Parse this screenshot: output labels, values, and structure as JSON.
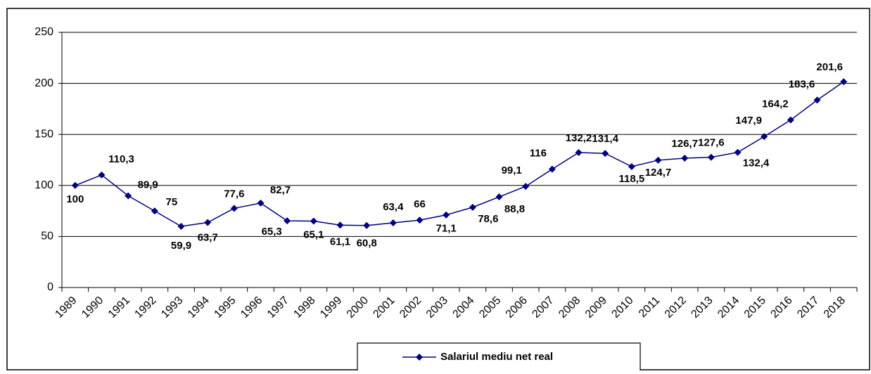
{
  "chart_data": {
    "type": "line",
    "categories": [
      "1989",
      "1990",
      "1991",
      "1992",
      "1993",
      "1994",
      "1995",
      "1996",
      "1997",
      "1998",
      "1999",
      "2000",
      "2001",
      "2002",
      "2003",
      "2004",
      "2005",
      "2006",
      "2007",
      "2008",
      "2009",
      "2010",
      "2011",
      "2012",
      "2013",
      "2014",
      "2015",
      "2016",
      "2017",
      "2018"
    ],
    "series": [
      {
        "name": "Salariul mediu net real",
        "color": "#000080",
        "values": [
          100,
          110.3,
          89.9,
          75,
          59.9,
          63.7,
          77.6,
          82.7,
          65.3,
          65.1,
          61.1,
          60.8,
          63.4,
          66,
          71.1,
          78.6,
          88.8,
          99.1,
          116,
          132.2,
          131.4,
          118.5,
          124.7,
          126.7,
          127.6,
          132.4,
          147.9,
          164.2,
          183.6,
          201.6
        ],
        "value_labels": [
          "100",
          "110,3",
          "89,9",
          "75",
          "59,9",
          "63,7",
          "77,6",
          "82,7",
          "65,3",
          "65,1",
          "61,1",
          "60,8",
          "63,4",
          "66",
          "71,1",
          "78,6",
          "88,8",
          "99,1",
          "116",
          "132,2",
          "131,4",
          "118,5",
          "124,7",
          "126,7",
          "127,6",
          "132,4",
          "147,9",
          "164,2",
          "183,6",
          "201,6"
        ]
      }
    ],
    "ylim": [
      0,
      250
    ],
    "yticks": [
      0,
      50,
      100,
      150,
      200,
      250
    ],
    "grid": true,
    "legend": "bottom"
  }
}
